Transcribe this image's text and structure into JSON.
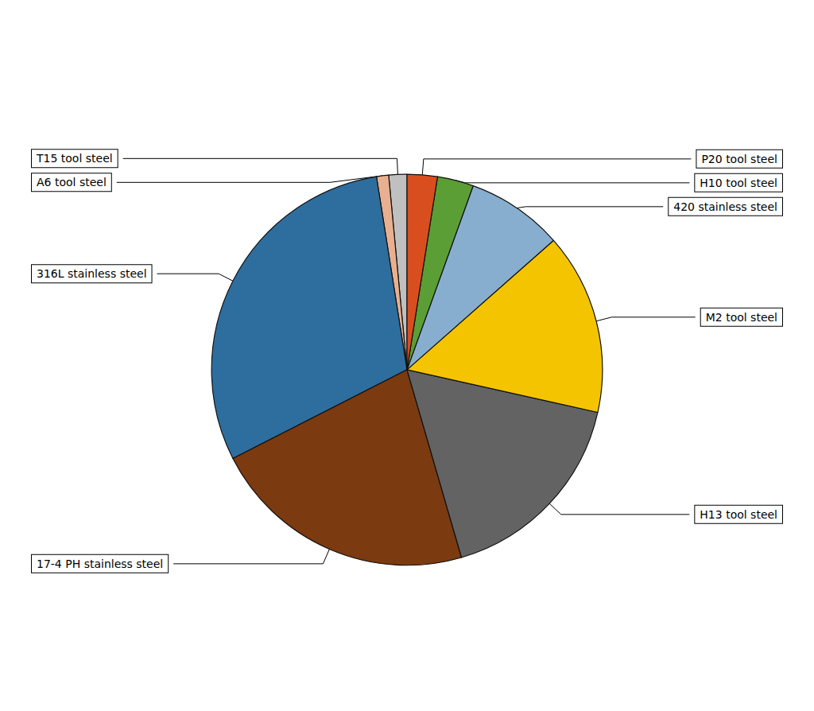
{
  "chart_data": {
    "type": "pie",
    "categories": [
      "T15 tool steel",
      "A6 tool steel",
      "316L stainless steel",
      "17-4 PH stainless steel",
      "H13 tool steel",
      "M2 tool steel",
      "420 stainless steel",
      "H10 tool steel",
      "P20 tool steel"
    ],
    "values": [
      1.5,
      1.0,
      30,
      22,
      17,
      15,
      8,
      3,
      2.5
    ],
    "colors": [
      "#C0C0C0",
      "#E8B090",
      "#2E6E9E",
      "#7B3A10",
      "#636363",
      "#F5C400",
      "#87AECE",
      "#5B9E35",
      "#D94E1F"
    ],
    "legend": false,
    "data_labels": false
  }
}
